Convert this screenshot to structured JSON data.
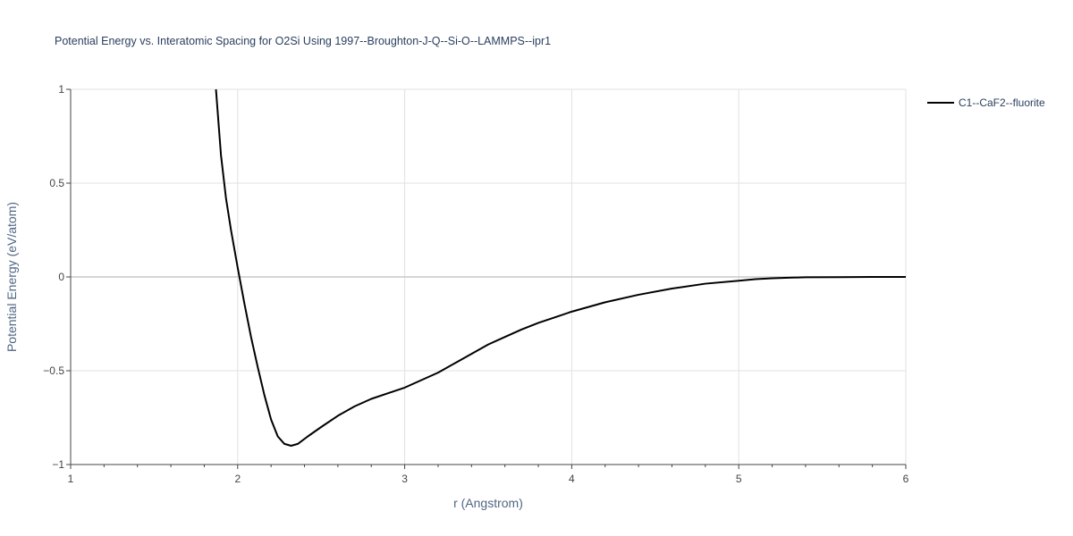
{
  "chart_data": {
    "type": "line",
    "title": "Potential Energy vs. Interatomic Spacing for O2Si Using 1997--Broughton-J-Q--Si-O--LAMMPS--ipr1",
    "xlabel": "r (Angstrom)",
    "ylabel": "Potential Energy (eV/atom)",
    "xlim": [
      1,
      6
    ],
    "ylim": [
      -1,
      1
    ],
    "x_ticks": [
      1,
      2,
      3,
      4,
      5,
      6
    ],
    "y_ticks": [
      -1,
      -0.5,
      0,
      0.5,
      1
    ],
    "x_tick_labels": [
      "1",
      "2",
      "3",
      "4",
      "5",
      "6"
    ],
    "y_tick_labels": [
      "−1",
      "−0.5",
      "0",
      "0.5",
      "1"
    ],
    "grid": true,
    "legend_position": "top-right",
    "series": [
      {
        "name": "C1--CaF2--fluorite",
        "color": "#000000",
        "x": [
          1.87,
          1.9,
          1.93,
          1.96,
          2.0,
          2.04,
          2.08,
          2.12,
          2.16,
          2.2,
          2.24,
          2.28,
          2.32,
          2.36,
          2.42,
          2.5,
          2.6,
          2.7,
          2.8,
          2.9,
          3.0,
          3.1,
          3.2,
          3.3,
          3.4,
          3.5,
          3.6,
          3.7,
          3.8,
          3.9,
          4.0,
          4.2,
          4.4,
          4.6,
          4.8,
          5.0,
          5.1,
          5.2,
          5.3,
          5.4,
          5.6,
          5.8,
          6.0
        ],
        "y": [
          1.0,
          0.65,
          0.42,
          0.25,
          0.05,
          -0.14,
          -0.32,
          -0.48,
          -0.63,
          -0.76,
          -0.85,
          -0.89,
          -0.9,
          -0.89,
          -0.85,
          -0.8,
          -0.74,
          -0.69,
          -0.65,
          -0.62,
          -0.59,
          -0.55,
          -0.51,
          -0.46,
          -0.41,
          -0.36,
          -0.32,
          -0.28,
          -0.245,
          -0.215,
          -0.185,
          -0.135,
          -0.095,
          -0.062,
          -0.036,
          -0.02,
          -0.012,
          -0.007,
          -0.004,
          -0.002,
          -0.001,
          0.0,
          0.0
        ]
      }
    ]
  }
}
